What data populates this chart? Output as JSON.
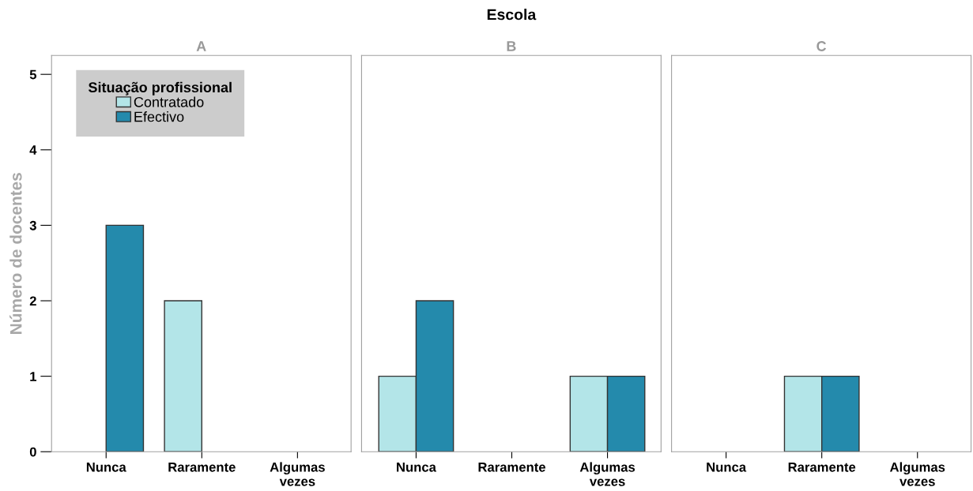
{
  "chart_data": [
    {
      "type": "bar",
      "subtitle": "A",
      "ylabel": "Número de docentes",
      "categories": [
        "Nunca",
        "Raramente",
        "Algumas\nvezes"
      ],
      "series": [
        {
          "name": "Contratado",
          "color": "#b3e5e8",
          "values": [
            null,
            2,
            null
          ]
        },
        {
          "name": "Efectivo",
          "color": "#248aac",
          "values": [
            3,
            null,
            null
          ]
        }
      ],
      "ylim": [
        0,
        5.25
      ],
      "yticks": [
        0,
        1,
        2,
        3,
        4,
        5
      ],
      "legend": "top left",
      "legend_title": "Situação profissional",
      "grid": false
    },
    {
      "type": "bar",
      "title": "Escola",
      "subtitle": "B",
      "categories": [
        "Nunca",
        "Raramente",
        "Algumas\nvezes"
      ],
      "series": [
        {
          "color": "#b3e5e8",
          "values": [
            1,
            null,
            1
          ]
        },
        {
          "color": "#248aac",
          "values": [
            2,
            null,
            1
          ]
        }
      ],
      "ylim": [
        0,
        5.25
      ],
      "yticks": [
        0,
        1,
        2,
        3,
        4,
        5
      ],
      "tick_labels": "x",
      "grid": false
    },
    {
      "type": "bar",
      "subtitle": "C",
      "categories": [
        "Nunca",
        "Raramente",
        "Algumas\nvezes"
      ],
      "series": [
        {
          "color": "#b3e5e8",
          "values": [
            null,
            1,
            null
          ]
        },
        {
          "color": "#248aac",
          "values": [
            null,
            1,
            null
          ]
        }
      ],
      "ylim": [
        0,
        5.25
      ],
      "yticks": [
        0,
        1,
        2,
        3,
        4,
        5
      ],
      "tick_labels": "x",
      "grid": false
    }
  ]
}
